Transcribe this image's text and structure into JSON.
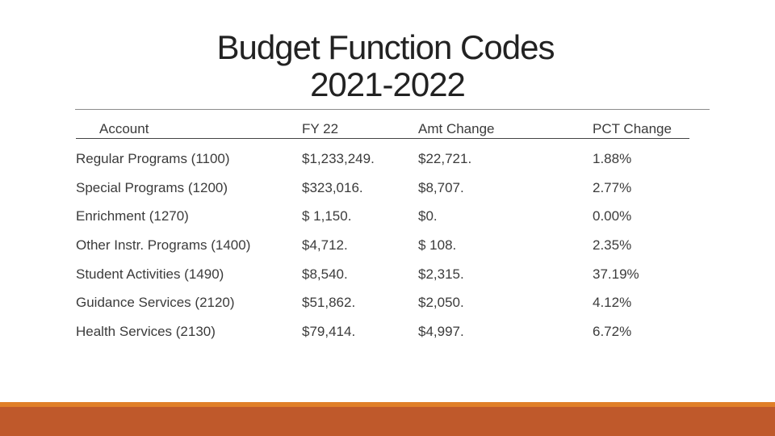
{
  "title": {
    "line1": "Budget Function Codes",
    "line2": "2021-2022"
  },
  "table": {
    "headers": [
      "Account",
      "FY 22",
      "Amt Change",
      "PCT Change"
    ],
    "rows": [
      [
        "Regular Programs (1100)",
        "$1,233,249.",
        "$22,721.",
        "1.88%"
      ],
      [
        "Special Programs (1200)",
        "$323,016.",
        "$8,707.",
        "2.77%"
      ],
      [
        "Enrichment (1270)",
        "$ 1,150.",
        "$0.",
        "0.00%"
      ],
      [
        "Other Instr. Programs (1400)",
        "$4,712.",
        "$ 108.",
        "2.35%"
      ],
      [
        "Student Activities (1490)",
        "$8,540.",
        "$2,315.",
        "37.19%"
      ],
      [
        "Guidance Services (2120)",
        "$51,862.",
        "$2,050.",
        "4.12%"
      ],
      [
        "Health Services (2130)",
        "$79,414.",
        "$4,997.",
        "6.72%"
      ]
    ]
  },
  "colors": {
    "accent_bar": "#bf592b",
    "accent_bar_highlight": "#e07f28",
    "text": "#3b3b3b"
  }
}
